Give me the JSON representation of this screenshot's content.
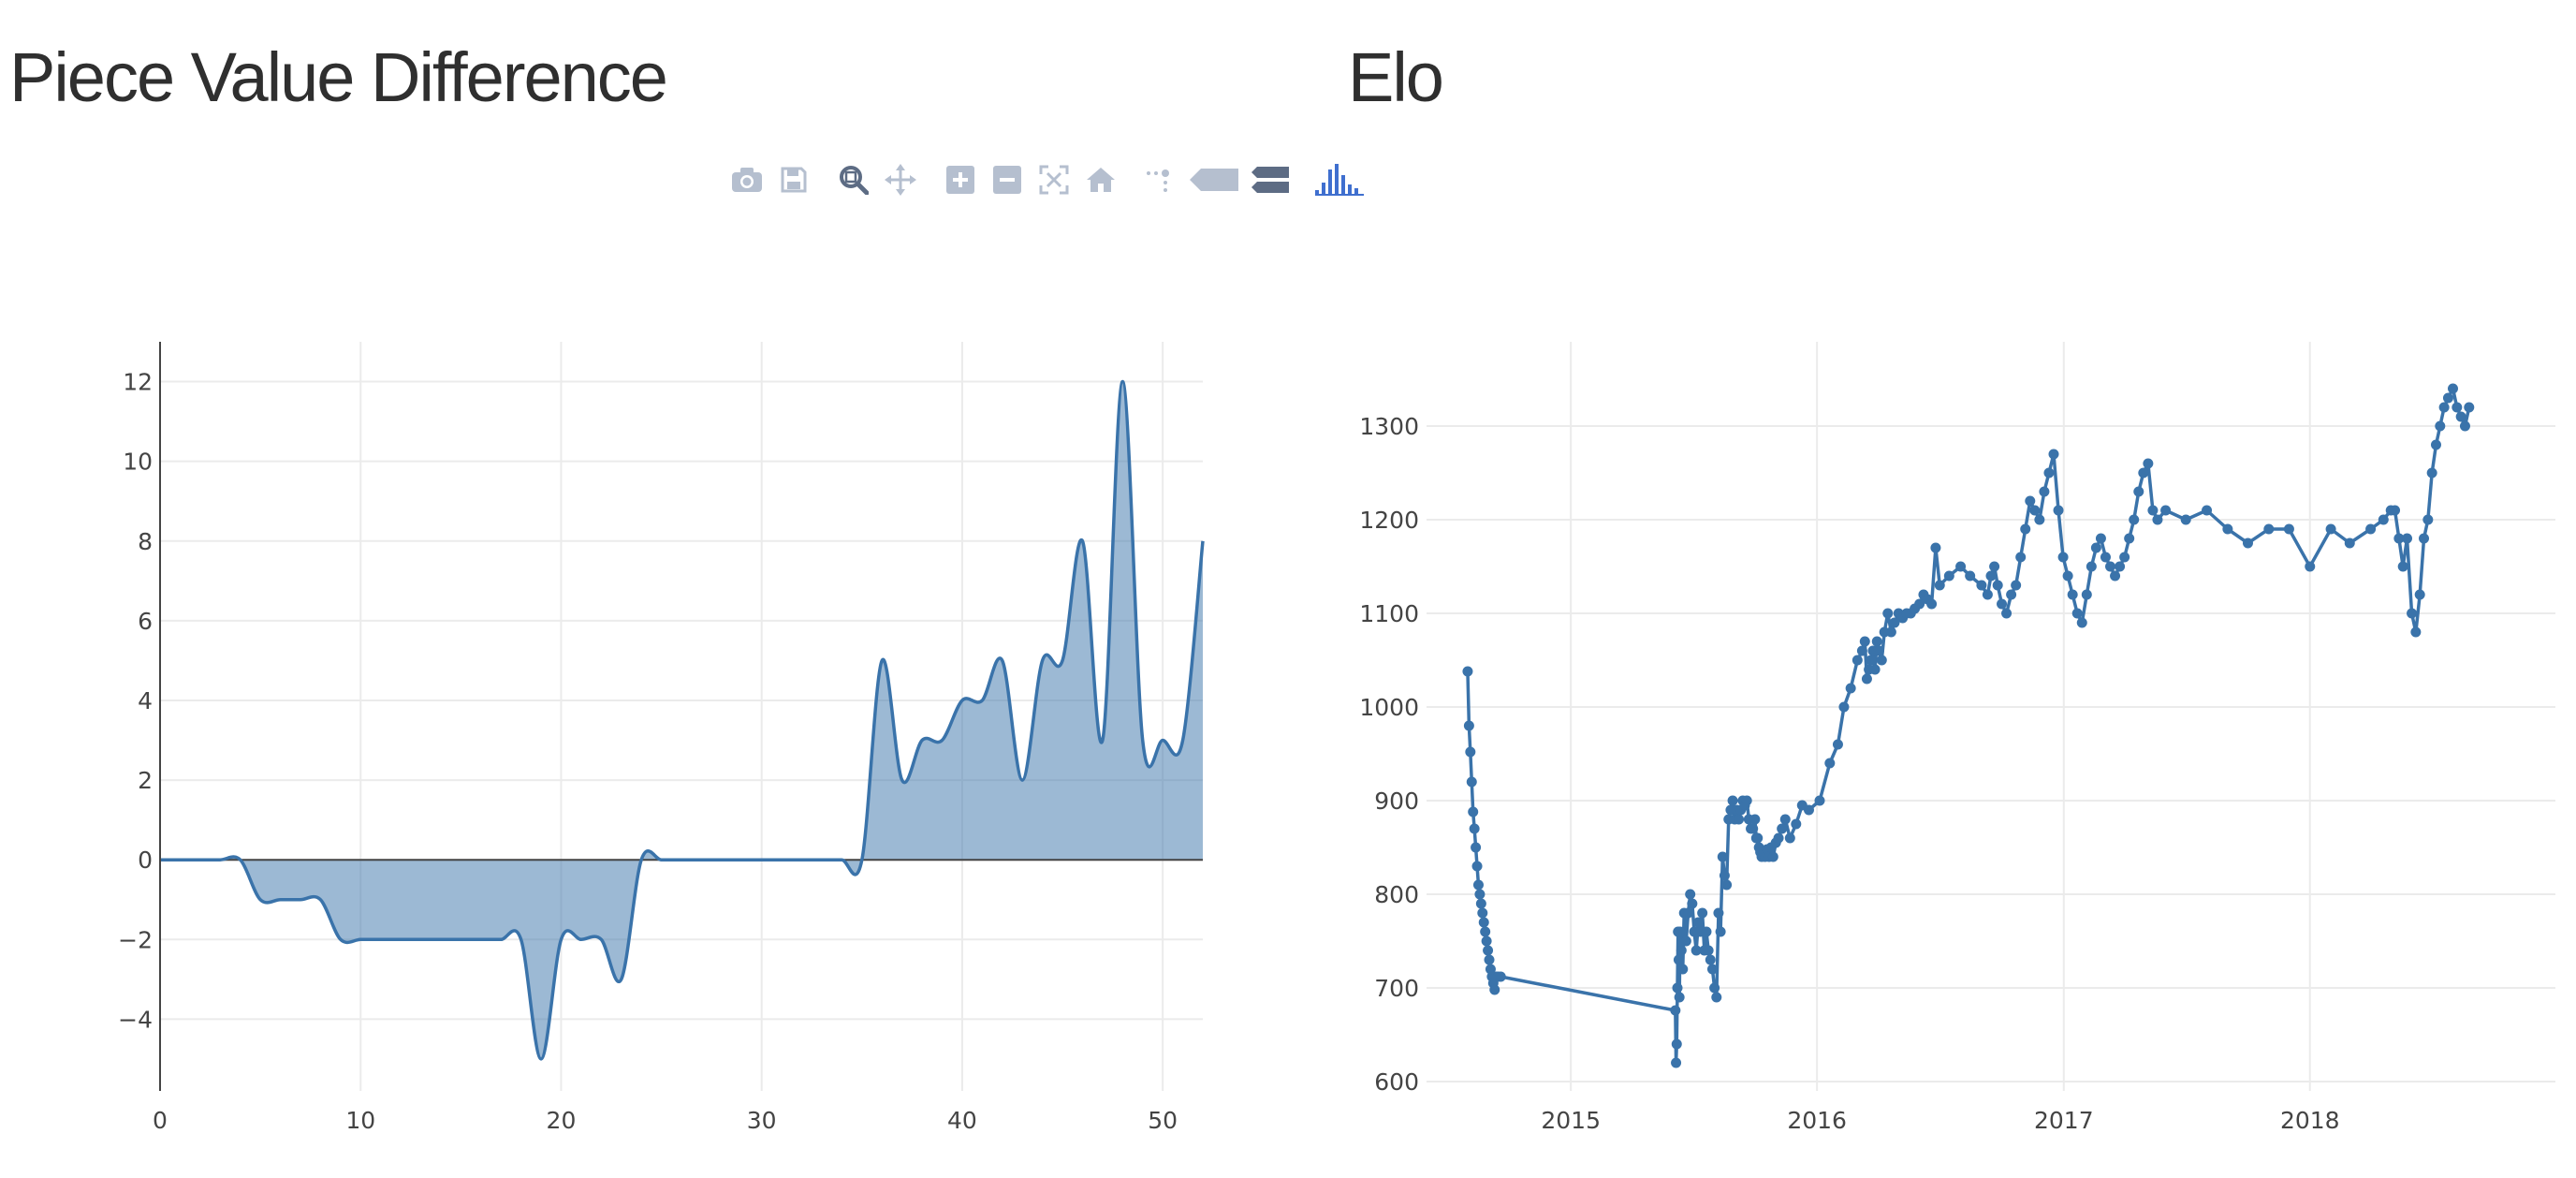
{
  "titles": {
    "left": "Piece Value Difference",
    "right": "Elo"
  },
  "modebar": {
    "icons": [
      "camera-icon",
      "save-icon",
      "zoom-icon",
      "pan-icon",
      "zoom-in-icon",
      "zoom-out-icon",
      "autoscale-icon",
      "home-icon",
      "spike-lines-icon",
      "hover-closest-icon",
      "hover-compare-icon",
      "plotly-logo-icon"
    ],
    "colors": {
      "inactive": "#b5bfcf",
      "active": "#5d6c84",
      "logo": "#3f6fcf"
    }
  },
  "colors": {
    "line": "#3a73aa",
    "fill": "rgba(58,115,170,0.5)",
    "grid": "#ebebeb",
    "axis": "#444444"
  },
  "chart_data": [
    {
      "type": "area",
      "title": "Piece Value Difference",
      "xlabel": "",
      "ylabel": "",
      "x": [
        0,
        1,
        2,
        3,
        4,
        5,
        6,
        7,
        8,
        9,
        10,
        11,
        12,
        13,
        14,
        15,
        16,
        17,
        18,
        19,
        20,
        21,
        22,
        23,
        24,
        25,
        26,
        27,
        28,
        29,
        30,
        31,
        32,
        33,
        34,
        35,
        36,
        37,
        38,
        39,
        40,
        41,
        42,
        43,
        44,
        45,
        46,
        47,
        48,
        49,
        50,
        51,
        52
      ],
      "y": [
        0,
        0,
        0,
        0,
        0,
        -1,
        -1,
        -1,
        -1,
        -2,
        -2,
        -2,
        -2,
        -2,
        -2,
        -2,
        -2,
        -2,
        -2,
        -5,
        -2,
        -2,
        -2,
        -3,
        0,
        0,
        0,
        0,
        0,
        0,
        0,
        0,
        0,
        0,
        0,
        0,
        5,
        2,
        3,
        3,
        4,
        4,
        5,
        2,
        5,
        5,
        8,
        3,
        12,
        3,
        3,
        3,
        8
      ],
      "xlim": [
        0,
        52
      ],
      "ylim": [
        -5.8,
        13
      ],
      "xticks": [
        0,
        10,
        20,
        30,
        40,
        50
      ],
      "yticks": [
        -4,
        -2,
        0,
        2,
        4,
        6,
        8,
        10,
        12
      ],
      "xtick_labels": [
        "0",
        "10",
        "20",
        "30",
        "40",
        "50"
      ],
      "ytick_labels": [
        "−4",
        "−2",
        "0",
        "2",
        "4",
        "6",
        "8",
        "10",
        "12"
      ],
      "grid": true,
      "legend": "none"
    },
    {
      "type": "line",
      "title": "Elo",
      "xlabel": "",
      "ylabel": "",
      "markers": true,
      "x": [
        "2014-08-01",
        "2014-08-03",
        "2014-08-05",
        "2014-08-07",
        "2014-08-09",
        "2014-08-11",
        "2014-08-13",
        "2014-08-15",
        "2014-08-17",
        "2014-08-19",
        "2014-08-21",
        "2014-08-23",
        "2014-08-25",
        "2014-08-27",
        "2014-08-29",
        "2014-08-31",
        "2014-09-02",
        "2014-09-04",
        "2014-09-06",
        "2014-09-08",
        "2014-09-10",
        "2014-09-12",
        "2014-09-15",
        "2014-09-19",
        "2015-06-05",
        "2015-06-06",
        "2015-06-07",
        "2015-06-08",
        "2015-06-09",
        "2015-06-10",
        "2015-06-11",
        "2015-06-12",
        "2015-06-14",
        "2015-06-16",
        "2015-06-18",
        "2015-06-21",
        "2015-06-24",
        "2015-06-27",
        "2015-06-30",
        "2015-07-03",
        "2015-07-06",
        "2015-07-09",
        "2015-07-12",
        "2015-07-15",
        "2015-07-18",
        "2015-07-21",
        "2015-07-24",
        "2015-07-27",
        "2015-07-30",
        "2015-08-02",
        "2015-08-05",
        "2015-08-08",
        "2015-08-11",
        "2015-08-14",
        "2015-08-17",
        "2015-08-20",
        "2015-08-23",
        "2015-08-26",
        "2015-08-29",
        "2015-09-01",
        "2015-09-04",
        "2015-09-07",
        "2015-09-10",
        "2015-09-13",
        "2015-09-16",
        "2015-09-19",
        "2015-09-22",
        "2015-09-25",
        "2015-09-28",
        "2015-10-01",
        "2015-10-03",
        "2015-10-05",
        "2015-10-07",
        "2015-10-09",
        "2015-10-11",
        "2015-10-13",
        "2015-10-16",
        "2015-10-19",
        "2015-10-22",
        "2015-10-25",
        "2015-10-28",
        "2015-11-01",
        "2015-11-05",
        "2015-11-10",
        "2015-11-15",
        "2015-11-22",
        "2015-12-01",
        "2015-12-10",
        "2015-12-20",
        "2016-01-05",
        "2016-01-20",
        "2016-02-01",
        "2016-02-10",
        "2016-02-20",
        "2016-03-01",
        "2016-03-08",
        "2016-03-12",
        "2016-03-15",
        "2016-03-18",
        "2016-03-21",
        "2016-03-24",
        "2016-03-27",
        "2016-03-30",
        "2016-04-02",
        "2016-04-06",
        "2016-04-10",
        "2016-04-15",
        "2016-04-20",
        "2016-04-25",
        "2016-05-01",
        "2016-05-07",
        "2016-05-13",
        "2016-05-19",
        "2016-05-25",
        "2016-06-01",
        "2016-06-07",
        "2016-06-13",
        "2016-06-19",
        "2016-06-25",
        "2016-07-01",
        "2016-07-15",
        "2016-08-01",
        "2016-08-15",
        "2016-09-01",
        "2016-09-10",
        "2016-09-15",
        "2016-09-20",
        "2016-09-25",
        "2016-10-01",
        "2016-10-08",
        "2016-10-15",
        "2016-10-22",
        "2016-10-29",
        "2016-11-05",
        "2016-11-12",
        "2016-11-19",
        "2016-11-26",
        "2016-12-03",
        "2016-12-10",
        "2016-12-17",
        "2016-12-24",
        "2016-12-31",
        "2017-01-07",
        "2017-01-14",
        "2017-01-21",
        "2017-01-28",
        "2017-02-04",
        "2017-02-11",
        "2017-02-18",
        "2017-02-25",
        "2017-03-04",
        "2017-03-11",
        "2017-03-18",
        "2017-03-25",
        "2017-04-01",
        "2017-04-08",
        "2017-04-15",
        "2017-04-22",
        "2017-04-29",
        "2017-05-06",
        "2017-05-13",
        "2017-05-20",
        "2017-06-01",
        "2017-07-01",
        "2017-08-01",
        "2017-09-01",
        "2017-10-01",
        "2017-11-01",
        "2017-12-01",
        "2018-01-01",
        "2018-02-01",
        "2018-03-01",
        "2018-04-01",
        "2018-04-20",
        "2018-05-01",
        "2018-05-07",
        "2018-05-13",
        "2018-05-19",
        "2018-05-25",
        "2018-06-01",
        "2018-06-07",
        "2018-06-13",
        "2018-06-19",
        "2018-06-25",
        "2018-07-01",
        "2018-07-07",
        "2018-07-13",
        "2018-07-19",
        "2018-07-25",
        "2018-08-01",
        "2018-08-07",
        "2018-08-13",
        "2018-08-19",
        "2018-08-25"
      ],
      "y": [
        1038,
        980,
        952,
        920,
        888,
        870,
        850,
        830,
        810,
        800,
        790,
        780,
        770,
        760,
        750,
        740,
        730,
        720,
        712,
        705,
        698,
        712,
        712,
        712,
        676,
        620,
        640,
        700,
        760,
        730,
        690,
        760,
        740,
        720,
        780,
        750,
        780,
        800,
        790,
        760,
        740,
        770,
        760,
        780,
        740,
        760,
        740,
        730,
        720,
        700,
        690,
        780,
        760,
        840,
        820,
        810,
        880,
        890,
        900,
        880,
        890,
        880,
        890,
        900,
        895,
        900,
        880,
        870,
        870,
        880,
        860,
        860,
        850,
        845,
        840,
        845,
        840,
        848,
        840,
        850,
        840,
        855,
        860,
        870,
        880,
        860,
        875,
        895,
        890,
        900,
        940,
        960,
        1000,
        1020,
        1050,
        1060,
        1070,
        1030,
        1040,
        1050,
        1060,
        1040,
        1070,
        1060,
        1050,
        1080,
        1100,
        1080,
        1090,
        1100,
        1095,
        1100,
        1100,
        1105,
        1110,
        1120,
        1115,
        1110,
        1170,
        1130,
        1140,
        1150,
        1140,
        1130,
        1120,
        1140,
        1150,
        1130,
        1110,
        1100,
        1120,
        1130,
        1160,
        1190,
        1220,
        1210,
        1200,
        1230,
        1250,
        1270,
        1210,
        1160,
        1140,
        1120,
        1100,
        1090,
        1120,
        1150,
        1170,
        1180,
        1160,
        1150,
        1140,
        1150,
        1160,
        1180,
        1200,
        1230,
        1250,
        1260,
        1210,
        1200,
        1210,
        1200,
        1210,
        1190,
        1175,
        1190,
        1190,
        1150,
        1190,
        1175,
        1190,
        1200,
        1210,
        1210,
        1180,
        1150,
        1180,
        1100,
        1080,
        1120,
        1180,
        1200,
        1250,
        1280,
        1300,
        1320,
        1330,
        1340,
        1320,
        1310,
        1300,
        1320
      ],
      "xlim": [
        "2014-06-01",
        "2018-12-31"
      ],
      "ylim": [
        590,
        1390
      ],
      "xticks": [
        "2015-01-01",
        "2016-01-01",
        "2017-01-01",
        "2018-01-01"
      ],
      "yticks": [
        600,
        700,
        800,
        900,
        1000,
        1100,
        1200,
        1300
      ],
      "xtick_labels": [
        "2015",
        "2016",
        "2017",
        "2018"
      ],
      "ytick_labels": [
        "600",
        "700",
        "800",
        "900",
        "1000",
        "1100",
        "1200",
        "1300"
      ],
      "grid": true,
      "legend": "none"
    }
  ]
}
